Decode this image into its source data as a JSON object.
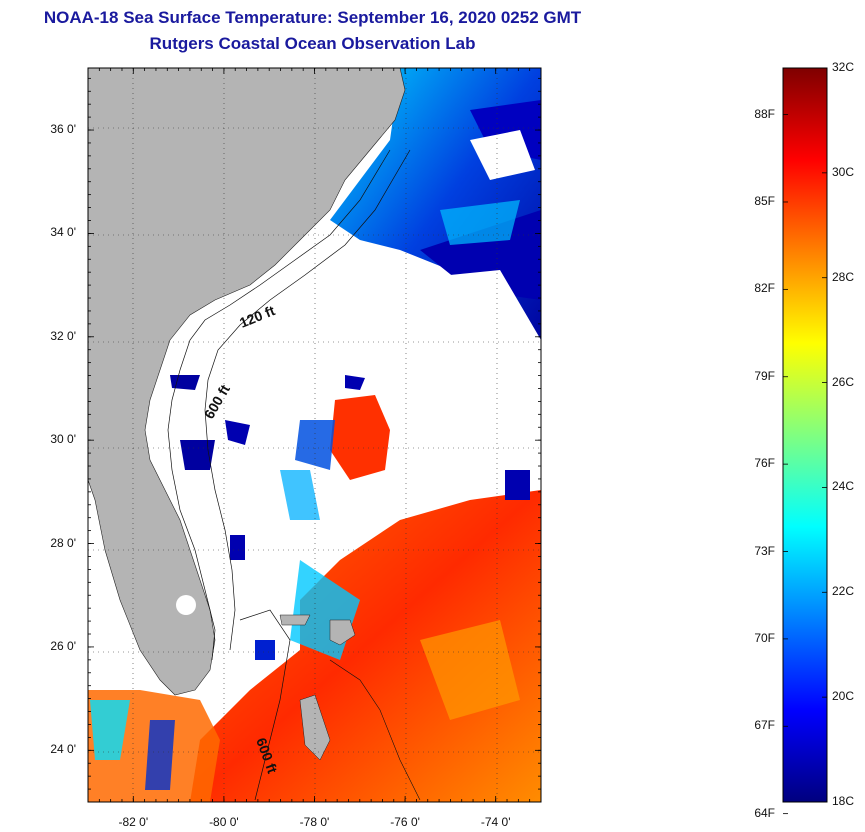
{
  "header": {
    "title": "NOAA-18 Sea Surface Temperature:  September 16, 2020 0252 GMT",
    "subtitle": "Rutgers Coastal Ocean Observation Lab"
  },
  "map": {
    "lat_labels": [
      "36 0'",
      "34 0'",
      "32 0'",
      "30 0'",
      "28 0'",
      "26 0'",
      "24 0'"
    ],
    "lat_values": [
      36,
      34,
      32,
      30,
      28,
      26,
      24
    ],
    "lon_labels": [
      "-82 0'",
      "-80 0'",
      "-78 0'",
      "-76 0'",
      "-74 0'"
    ],
    "lon_values": [
      -82,
      -80,
      -78,
      -76,
      -74
    ],
    "lat_range": [
      23,
      37.2
    ],
    "lon_range": [
      -83,
      -73
    ],
    "contour_labels": [
      "120 ft",
      "600 ft",
      "600 ft"
    ],
    "land_color": "#b4b4b4",
    "cloud_color": "#ffffff"
  },
  "colorbar": {
    "fahrenheit_labels": [
      "88F",
      "85F",
      "82F",
      "79F",
      "76F",
      "73F",
      "70F",
      "67F",
      "64F"
    ],
    "fahrenheit_values": [
      88,
      85,
      82,
      79,
      76,
      73,
      70,
      67,
      64
    ],
    "celsius_labels": [
      "32C",
      "30C",
      "28C",
      "26C",
      "24C",
      "22C",
      "20C",
      "18C"
    ],
    "celsius_values": [
      32,
      30,
      28,
      26,
      24,
      22,
      20,
      18
    ],
    "range_c": [
      18,
      32
    ],
    "colors": [
      "#00007f",
      "#0000ff",
      "#0080ff",
      "#00ffff",
      "#80ff80",
      "#ffff00",
      "#ff8000",
      "#ff0000",
      "#7f0000"
    ]
  }
}
